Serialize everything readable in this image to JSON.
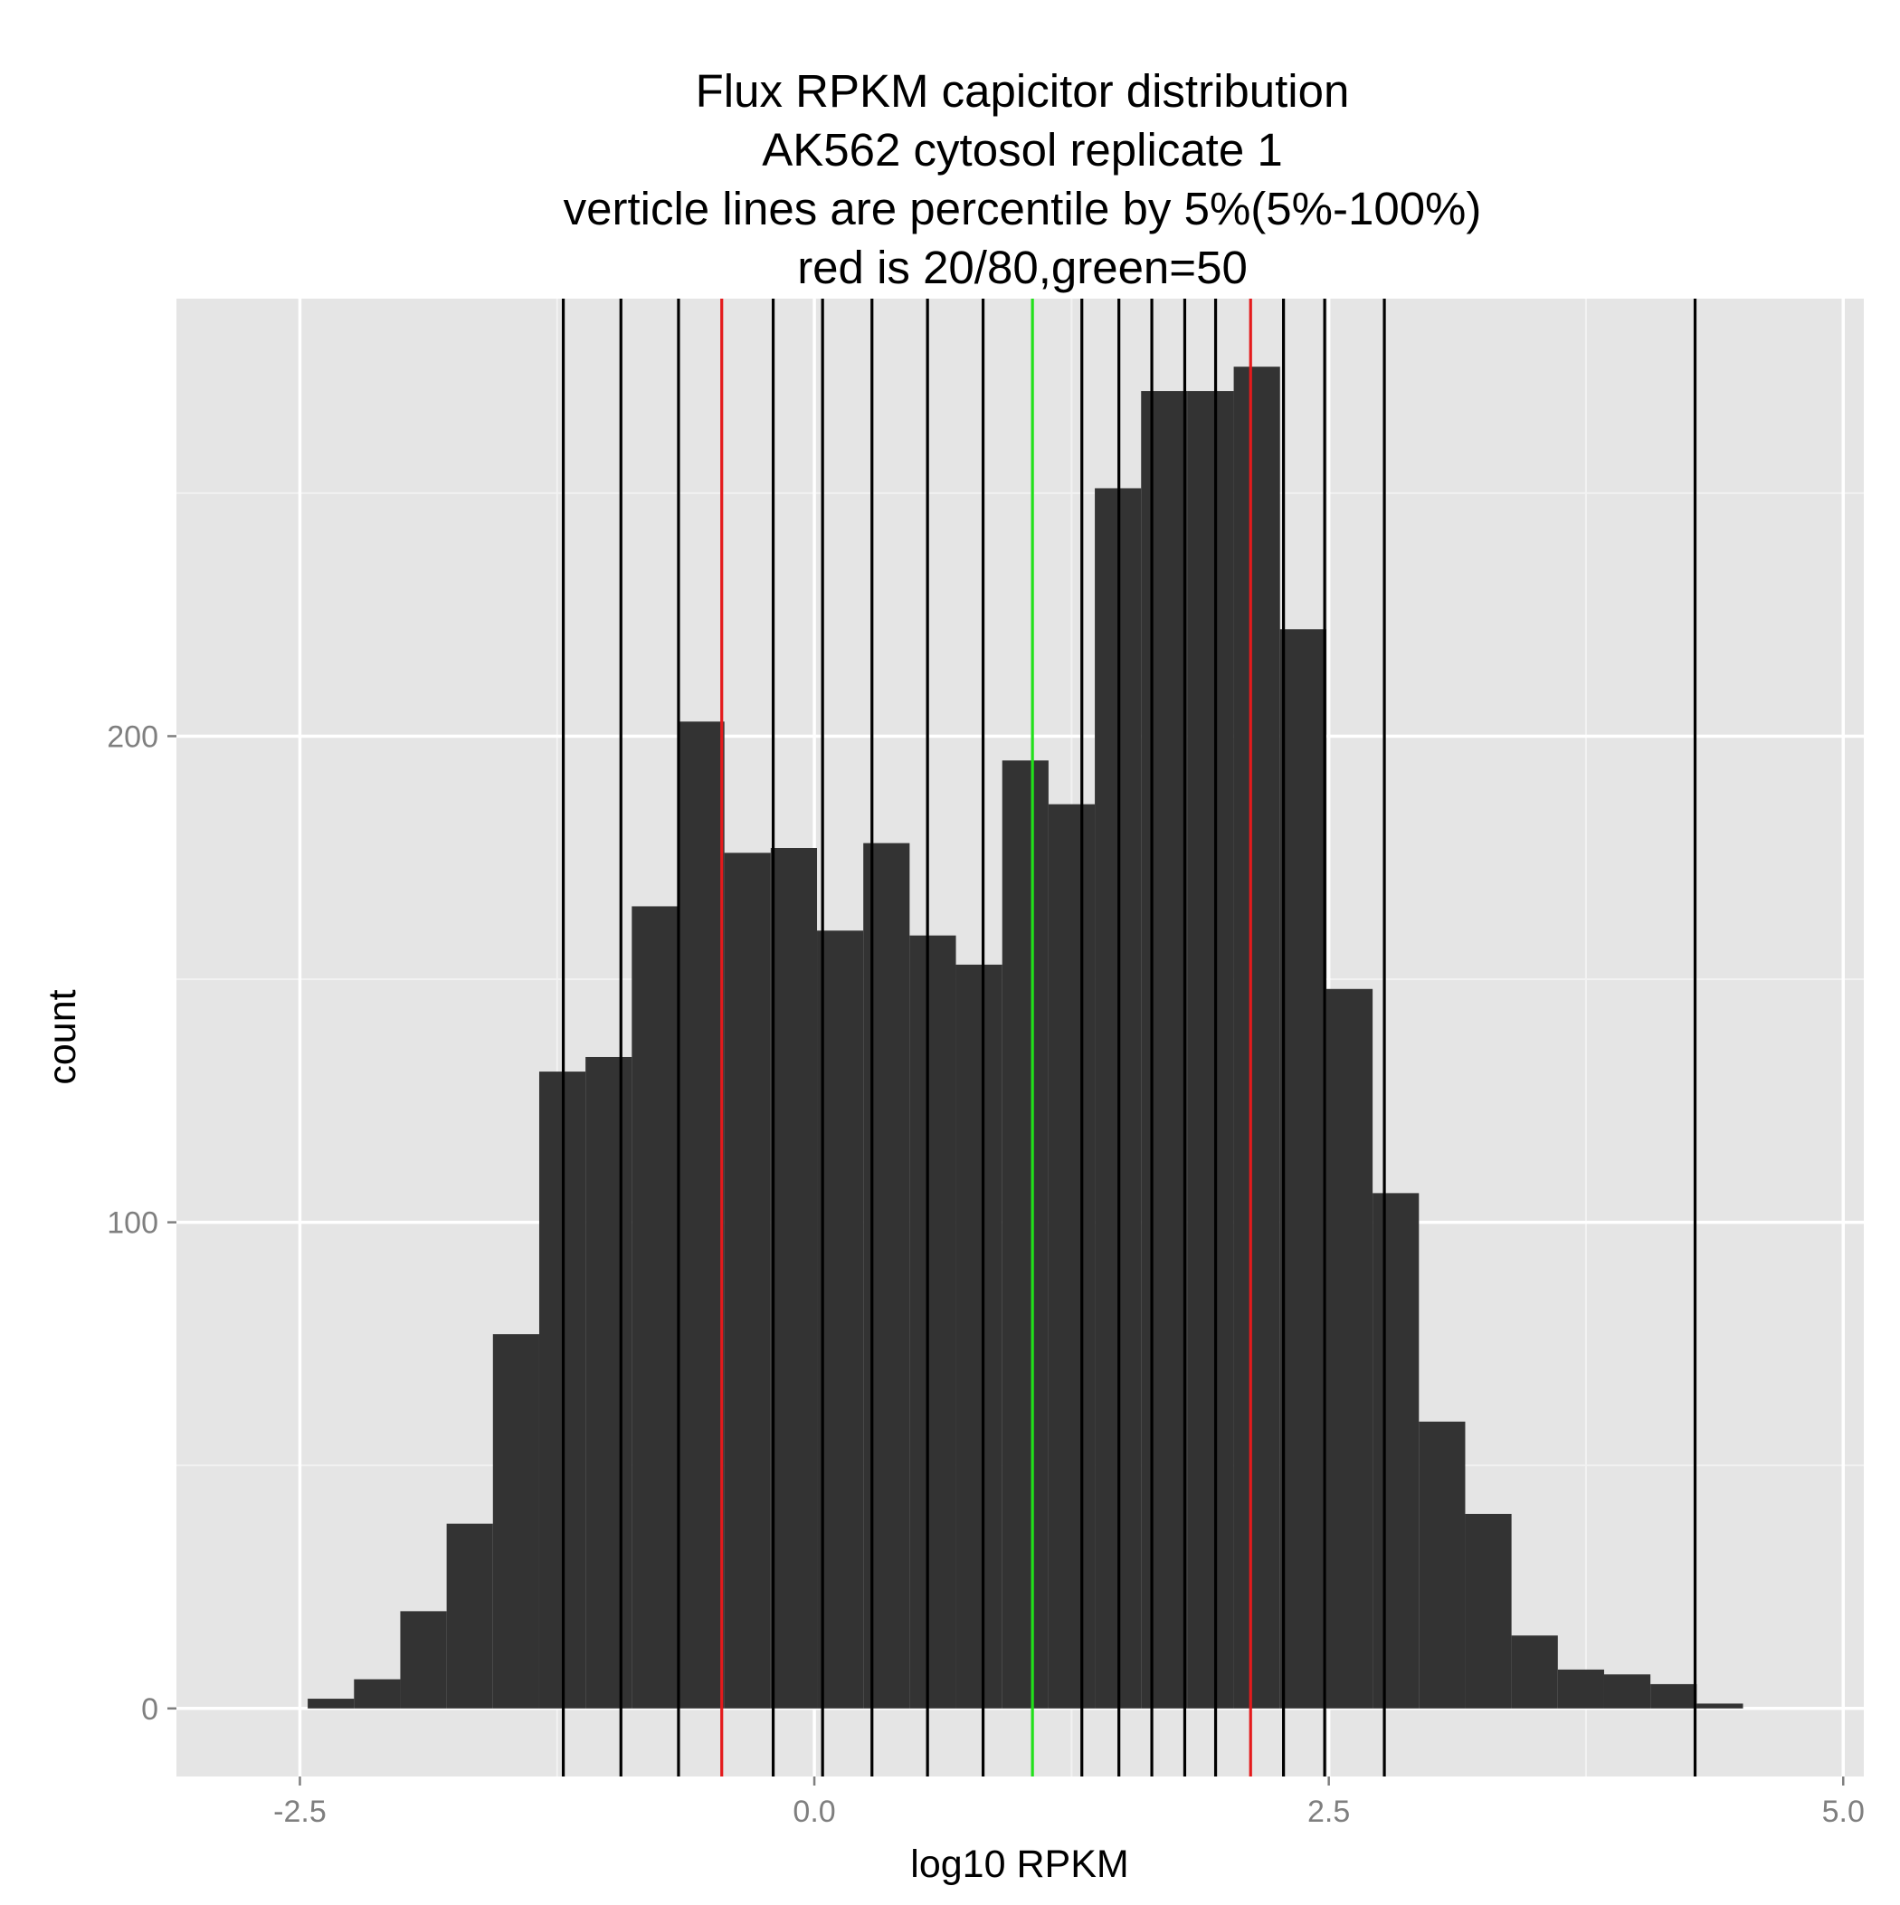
{
  "chart_data": {
    "type": "bar",
    "title_lines": [
      "Flux RPKM capicitor distribution",
      "AK562 cytosol replicate 1",
      "verticle lines are percentile by 5%(5%-100%)",
      "red is 20/80,green=50"
    ],
    "xlabel": "log10 RPKM",
    "ylabel": "count",
    "xlim": [
      -3.1,
      5.1
    ],
    "ylim": [
      -14,
      290
    ],
    "x_ticks": [
      {
        "value": -2.5,
        "label": "-2.5"
      },
      {
        "value": 0.0,
        "label": "0.0"
      },
      {
        "value": 2.5,
        "label": "2.5"
      },
      {
        "value": 5.0,
        "label": "5.0"
      }
    ],
    "y_ticks": [
      {
        "value": 0,
        "label": "0"
      },
      {
        "value": 100,
        "label": "100"
      },
      {
        "value": 200,
        "label": "200"
      }
    ],
    "bin_width": 0.225,
    "bins": [
      {
        "x0": -2.462,
        "count": 2
      },
      {
        "x0": -2.237,
        "count": 6
      },
      {
        "x0": -2.012,
        "count": 20
      },
      {
        "x0": -1.787,
        "count": 38
      },
      {
        "x0": -1.562,
        "count": 77
      },
      {
        "x0": -1.337,
        "count": 131
      },
      {
        "x0": -1.112,
        "count": 134
      },
      {
        "x0": -0.887,
        "count": 165
      },
      {
        "x0": -0.662,
        "count": 203
      },
      {
        "x0": -0.437,
        "count": 176
      },
      {
        "x0": -0.212,
        "count": 177
      },
      {
        "x0": 0.013,
        "count": 160
      },
      {
        "x0": 0.238,
        "count": 178
      },
      {
        "x0": 0.463,
        "count": 159
      },
      {
        "x0": 0.688,
        "count": 153
      },
      {
        "x0": 0.913,
        "count": 195
      },
      {
        "x0": 1.138,
        "count": 186
      },
      {
        "x0": 1.363,
        "count": 251
      },
      {
        "x0": 1.588,
        "count": 271
      },
      {
        "x0": 1.813,
        "count": 271
      },
      {
        "x0": 2.038,
        "count": 276
      },
      {
        "x0": 2.263,
        "count": 222
      },
      {
        "x0": 2.488,
        "count": 148
      },
      {
        "x0": 2.713,
        "count": 106
      },
      {
        "x0": 2.938,
        "count": 59
      },
      {
        "x0": 3.163,
        "count": 40
      },
      {
        "x0": 3.388,
        "count": 15
      },
      {
        "x0": 3.613,
        "count": 8
      },
      {
        "x0": 3.838,
        "count": 7
      },
      {
        "x0": 4.063,
        "count": 5
      },
      {
        "x0": 4.288,
        "count": 1
      }
    ],
    "percentile_lines": [
      {
        "x": -1.22,
        "color": "#000000"
      },
      {
        "x": -0.94,
        "color": "#000000"
      },
      {
        "x": -0.66,
        "color": "#000000"
      },
      {
        "x": -0.45,
        "color": "#e41a1c"
      },
      {
        "x": -0.2,
        "color": "#000000"
      },
      {
        "x": 0.04,
        "color": "#000000"
      },
      {
        "x": 0.28,
        "color": "#000000"
      },
      {
        "x": 0.55,
        "color": "#000000"
      },
      {
        "x": 0.82,
        "color": "#000000"
      },
      {
        "x": 1.06,
        "color": "#22e01b"
      },
      {
        "x": 1.3,
        "color": "#000000"
      },
      {
        "x": 1.48,
        "color": "#000000"
      },
      {
        "x": 1.64,
        "color": "#000000"
      },
      {
        "x": 1.8,
        "color": "#000000"
      },
      {
        "x": 1.95,
        "color": "#000000"
      },
      {
        "x": 2.12,
        "color": "#e41a1c"
      },
      {
        "x": 2.28,
        "color": "#000000"
      },
      {
        "x": 2.48,
        "color": "#000000"
      },
      {
        "x": 2.77,
        "color": "#000000"
      },
      {
        "x": 4.28,
        "color": "#000000"
      }
    ],
    "grid": true,
    "colors": {
      "panel_background": "#e5e5e5",
      "grid_major": "#ffffff",
      "grid_minor": "#f2f2f2",
      "bar_fill": "#333333",
      "percentile_default": "#000000",
      "percentile_20_80": "#e41a1c",
      "percentile_50": "#22e01b"
    }
  }
}
